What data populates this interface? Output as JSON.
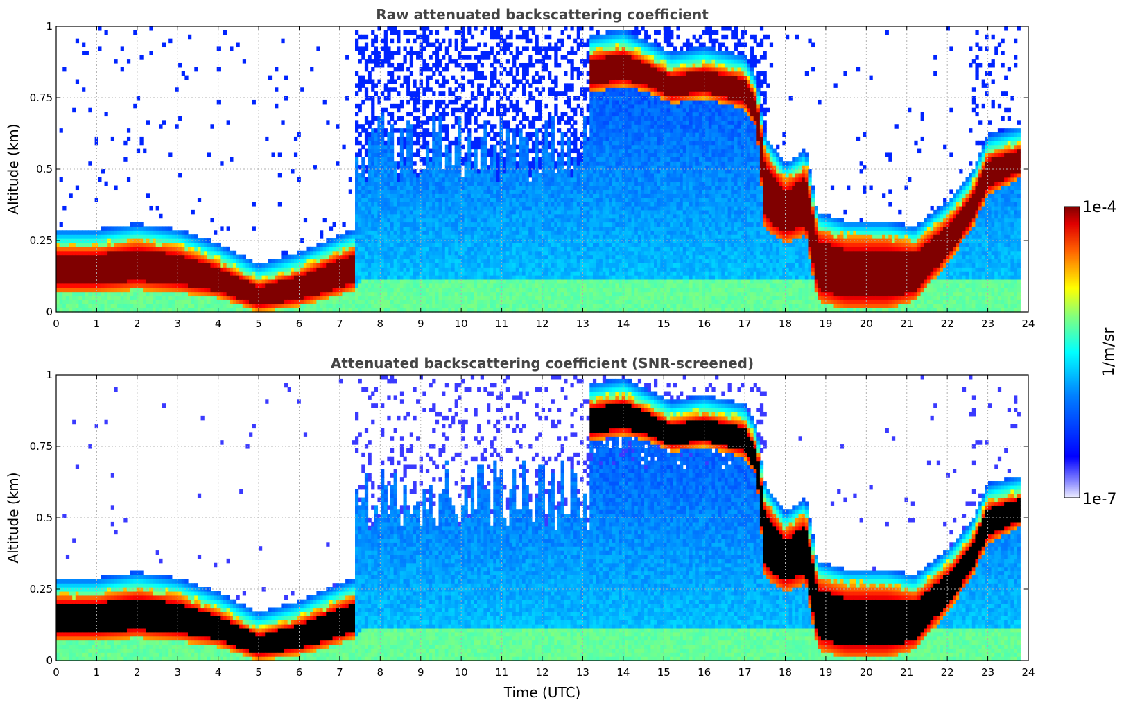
{
  "chart_data": [
    {
      "type": "heatmap",
      "title": "Raw attenuated backscattering coefficient",
      "xlabel": "",
      "ylabel": "Altitude (km)",
      "xlim": [
        0,
        24
      ],
      "ylim": [
        0,
        1
      ],
      "x_ticks": [
        "0",
        "1",
        "2",
        "3",
        "4",
        "5",
        "6",
        "7",
        "8",
        "9",
        "10",
        "11",
        "12",
        "13",
        "14",
        "15",
        "16",
        "17",
        "18",
        "19",
        "20",
        "21",
        "22",
        "23",
        "24"
      ],
      "y_ticks": [
        "0",
        "0.25",
        "0.5",
        "0.75",
        "1"
      ],
      "grid": true,
      "data_end_hour": 23.8,
      "colorscale": "jet",
      "cloud_layer_top_km": [
        [
          0,
          0.22
        ],
        [
          1,
          0.22
        ],
        [
          2,
          0.24
        ],
        [
          3,
          0.22
        ],
        [
          4,
          0.17
        ],
        [
          5,
          0.1
        ],
        [
          6,
          0.14
        ],
        [
          7,
          0.2
        ],
        [
          7.4,
          0.22
        ],
        [
          13.2,
          0.9
        ],
        [
          14,
          0.92
        ],
        [
          14.6,
          0.88
        ],
        [
          15.2,
          0.84
        ],
        [
          16,
          0.86
        ],
        [
          17,
          0.83
        ],
        [
          17.3,
          0.75
        ],
        [
          17.5,
          0.55
        ],
        [
          18,
          0.45
        ],
        [
          18.5,
          0.5
        ],
        [
          18.8,
          0.28
        ],
        [
          19.5,
          0.25
        ],
        [
          20.5,
          0.25
        ],
        [
          21.2,
          0.23
        ],
        [
          22,
          0.32
        ],
        [
          22.6,
          0.42
        ],
        [
          23,
          0.55
        ],
        [
          23.8,
          0.58
        ]
      ],
      "cloud_layer_base_km": [
        [
          0,
          0.08
        ],
        [
          1,
          0.08
        ],
        [
          2,
          0.09
        ],
        [
          3,
          0.08
        ],
        [
          4,
          0.06
        ],
        [
          5,
          0.01
        ],
        [
          6,
          0.03
        ],
        [
          7,
          0.07
        ],
        [
          7.4,
          0.09
        ],
        [
          13.2,
          0.78
        ],
        [
          14,
          0.8
        ],
        [
          14.6,
          0.78
        ],
        [
          15.2,
          0.74
        ],
        [
          16,
          0.76
        ],
        [
          17,
          0.72
        ],
        [
          17.3,
          0.65
        ],
        [
          17.5,
          0.3
        ],
        [
          18,
          0.25
        ],
        [
          18.5,
          0.28
        ],
        [
          18.8,
          0.05
        ],
        [
          19.5,
          0.02
        ],
        [
          20.5,
          0.02
        ],
        [
          21.2,
          0.05
        ],
        [
          22,
          0.18
        ],
        [
          22.6,
          0.3
        ],
        [
          23,
          0.42
        ],
        [
          23.8,
          0.48
        ]
      ]
    },
    {
      "type": "heatmap",
      "title": "Attenuated backscattering coefficient (SNR-screened)",
      "xlabel": "Time (UTC)",
      "ylabel": "Altitude (km)",
      "xlim": [
        0,
        24
      ],
      "ylim": [
        0,
        1
      ],
      "x_ticks": [
        "0",
        "1",
        "2",
        "3",
        "4",
        "5",
        "6",
        "7",
        "8",
        "9",
        "10",
        "11",
        "12",
        "13",
        "14",
        "15",
        "16",
        "17",
        "18",
        "19",
        "20",
        "21",
        "22",
        "23",
        "24"
      ],
      "y_ticks": [
        "0",
        "0.25",
        "0.5",
        "0.75",
        "1"
      ],
      "grid": true,
      "data_end_hour": 23.8,
      "colorscale": "jet",
      "saturated_color": "#000000"
    }
  ],
  "colorbar": {
    "max_label": "1e-4",
    "min_label": "1e-7",
    "unit_label": "1/m/sr"
  }
}
